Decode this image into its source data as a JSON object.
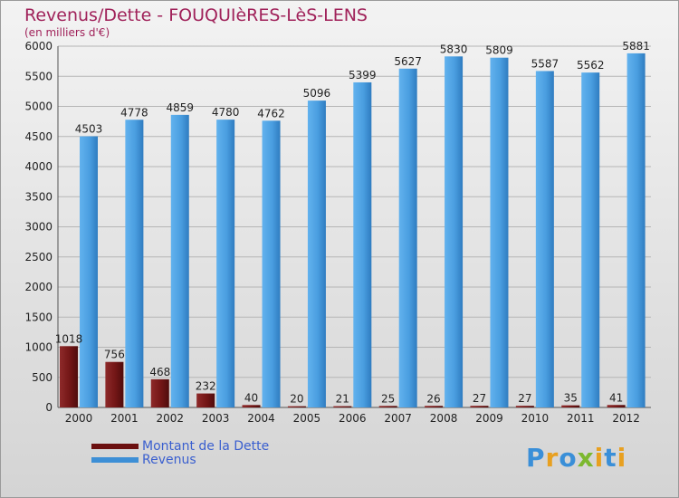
{
  "header": {
    "title": "Revenus/Dette - FOUQUIèRES-LèS-LENS",
    "subtitle": "(en milliers d'€)"
  },
  "legend": {
    "debt_label": "Montant de la Dette",
    "revenue_label": "Revenus"
  },
  "logo": {
    "text": "Proxiti",
    "letters": [
      "P",
      "r",
      "o",
      "x",
      "i",
      "t",
      "i"
    ],
    "colors": [
      "#3a8fd8",
      "#e8a020",
      "#3a8fd8",
      "#7cb82f",
      "#e8a020",
      "#3a8fd8",
      "#e8a020"
    ]
  },
  "colors": {
    "debt": "#7a1a1a",
    "revenue": "#4a9ee0",
    "title": "#a0225a",
    "legend_text": "#3a5fcf"
  },
  "chart_data": {
    "type": "bar",
    "title": "Revenus/Dette - FOUQUIèRES-LèS-LENS",
    "subtitle": "(en milliers d'€)",
    "categories": [
      "2000",
      "2001",
      "2002",
      "2003",
      "2004",
      "2005",
      "2006",
      "2007",
      "2008",
      "2009",
      "2010",
      "2011",
      "2012"
    ],
    "series": [
      {
        "name": "Montant de la Dette",
        "values": [
          1018,
          756,
          468,
          232,
          40,
          20,
          21,
          25,
          26,
          27,
          27,
          35,
          41
        ]
      },
      {
        "name": "Revenus",
        "values": [
          4503,
          4778,
          4859,
          4780,
          4762,
          5096,
          5399,
          5627,
          5830,
          5809,
          5587,
          5562,
          5881
        ]
      }
    ],
    "yticks": [
      0,
      500,
      1000,
      1500,
      2000,
      2500,
      3000,
      3500,
      4000,
      4500,
      5000,
      5500,
      6000
    ],
    "ylim": [
      0,
      6000
    ],
    "grid": true,
    "legend_position": "bottom-left"
  }
}
